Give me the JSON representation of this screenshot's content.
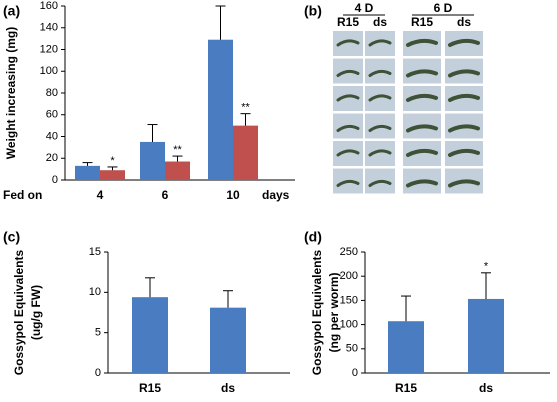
{
  "chart_data": [
    {
      "type": "bar",
      "panel_label": "(a)",
      "ylabel": "Weight increasing (mg)",
      "categories": [
        "4",
        "6",
        "10"
      ],
      "xlabel_left": "Fed on",
      "xlabel_right": "days",
      "series": [
        {
          "color": "#4a7cc1",
          "values": [
            13,
            35,
            129
          ],
          "errors": [
            3,
            16,
            31
          ]
        },
        {
          "color": "#c0504d",
          "values": [
            9,
            17,
            50
          ],
          "errors": [
            3,
            5,
            11
          ],
          "annotations": [
            "*",
            "**",
            "**"
          ]
        }
      ],
      "ylim": [
        0,
        160
      ],
      "yticks": [
        0,
        20,
        40,
        60,
        80,
        100,
        120,
        140,
        160
      ]
    },
    {
      "type": "bar",
      "panel_label": "(c)",
      "ylabel": [
        "Gossypol Equivalents",
        "(ug/g FW)"
      ],
      "categories": [
        "R15",
        "ds"
      ],
      "series": [
        {
          "color": "#4a7cc1",
          "values": [
            9.4,
            8.1
          ],
          "errors": [
            2.4,
            2.1
          ]
        }
      ],
      "ylim": [
        0,
        15
      ],
      "yticks": [
        0,
        5,
        10,
        15
      ]
    },
    {
      "type": "bar",
      "panel_label": "(d)",
      "ylabel": [
        "Gossypol Equivalents",
        "(ng per worm)"
      ],
      "categories": [
        "R15",
        "ds"
      ],
      "series": [
        {
          "color": "#4a7cc1",
          "values": [
            107,
            153
          ],
          "errors": [
            52,
            54
          ],
          "annotations": [
            null,
            "*"
          ]
        }
      ],
      "ylim": [
        0,
        250
      ],
      "yticks": [
        0,
        50,
        100,
        150,
        200,
        250
      ]
    }
  ],
  "photo_panel": {
    "panel_label": "(b)",
    "groups": [
      {
        "label": "4 D",
        "columns": [
          "R15",
          "ds"
        ]
      },
      {
        "label": "6 D",
        "columns": [
          "R15",
          "ds"
        ]
      }
    ]
  }
}
